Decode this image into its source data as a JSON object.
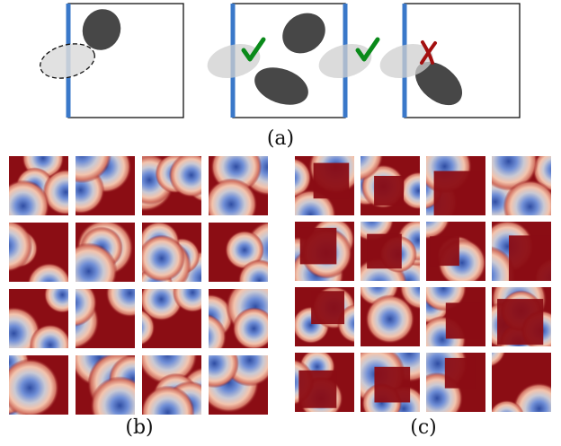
{
  "captions": {
    "a": "(a)",
    "b": "(b)",
    "c": "(c)"
  },
  "colors": {
    "boundary": "#3a78c9",
    "blob_dark": "#474747",
    "blob_ghost": "#cfcfcf",
    "check": "#0a8a1a",
    "cross": "#a30f0f",
    "field_high": "#8b0d14",
    "field_mid": "#f3c4ad",
    "field_low": "#2f4da3"
  },
  "panel_a": {
    "marks": [
      "check",
      "check",
      "cross"
    ]
  },
  "grids": {
    "rows": 4,
    "cols": 4
  }
}
